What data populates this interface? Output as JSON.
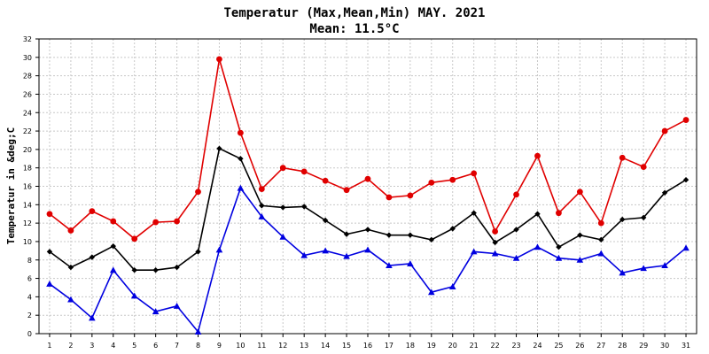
{
  "chart_data": {
    "type": "line",
    "title": "Temperatur (Max,Mean,Min) MAY. 2021",
    "subtitle": "Mean: 11.5°C",
    "ylabel": "Temperatur in &deg;C",
    "xlabel": "",
    "ylim": [
      0,
      32
    ],
    "yticks": [
      0,
      2,
      4,
      6,
      8,
      10,
      12,
      14,
      16,
      18,
      20,
      22,
      24,
      26,
      28,
      30,
      32
    ],
    "x": [
      1,
      2,
      3,
      4,
      5,
      6,
      7,
      8,
      9,
      10,
      11,
      12,
      13,
      14,
      15,
      16,
      17,
      18,
      19,
      20,
      21,
      22,
      23,
      24,
      25,
      26,
      27,
      28,
      29,
      30,
      31
    ],
    "grid": true,
    "series": [
      {
        "color": "#e00000",
        "marker": "circle",
        "values": [
          13.0,
          11.2,
          13.3,
          12.2,
          10.3,
          12.1,
          12.2,
          15.4,
          29.8,
          21.8,
          15.7,
          18.0,
          17.6,
          16.6,
          15.6,
          16.8,
          14.8,
          15.0,
          16.4,
          16.7,
          17.4,
          11.1,
          15.1,
          19.3,
          13.1,
          15.4,
          12.0,
          19.1,
          18.1,
          22.0,
          23.2
        ]
      },
      {
        "color": "#000000",
        "marker": "diamond",
        "values": [
          8.9,
          7.2,
          8.3,
          9.5,
          6.9,
          6.9,
          7.2,
          8.9,
          20.1,
          19.0,
          13.9,
          13.7,
          13.8,
          12.3,
          10.8,
          11.3,
          10.7,
          10.7,
          10.2,
          11.4,
          13.1,
          9.9,
          11.3,
          13.0,
          9.4,
          10.7,
          10.2,
          12.4,
          12.6,
          15.3,
          16.7
        ]
      },
      {
        "color": "#0000e0",
        "marker": "triangle",
        "values": [
          5.4,
          3.7,
          1.7,
          6.9,
          4.1,
          2.4,
          3.0,
          0.2,
          9.1,
          15.8,
          12.7,
          10.5,
          8.5,
          9.0,
          8.4,
          9.1,
          7.4,
          7.6,
          4.5,
          5.1,
          8.9,
          8.7,
          8.2,
          9.4,
          8.2,
          8.0,
          8.7,
          6.6,
          7.1,
          7.4,
          9.3
        ]
      }
    ]
  }
}
